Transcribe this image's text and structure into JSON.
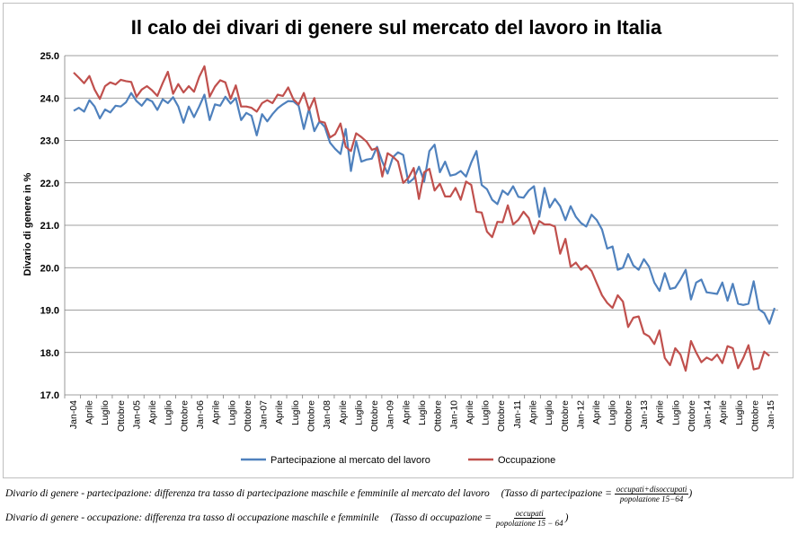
{
  "chart_data": {
    "type": "line",
    "title": "Il calo dei divari di genere sul mercato del lavoro in Italia",
    "ylabel": "Divario di genere in %",
    "xlabel": "",
    "ylim": [
      17.0,
      25.0
    ],
    "yticks": [
      "17.0",
      "18.0",
      "19.0",
      "20.0",
      "21.0",
      "22.0",
      "23.0",
      "24.0",
      "25.0"
    ],
    "xtick_labels": [
      "Jan-04",
      "Aprile",
      "Luglio",
      "Ottobre",
      "Jan-05",
      "Aprile",
      "Luglio",
      "Ottobre",
      "Jan-06",
      "Aprile",
      "Luglio",
      "Ottobre",
      "Jan-07",
      "Aprile",
      "Luglio",
      "Ottobre",
      "Jan-08",
      "Aprile",
      "Luglio",
      "Ottobre",
      "Jan-09",
      "Aprile",
      "Luglio",
      "Ottobre",
      "Jan-10",
      "Aprile",
      "Luglio",
      "Ottobre",
      "Jan-11",
      "Aprile",
      "Luglio",
      "Ottobre",
      "Jan-12",
      "Aprile",
      "Luglio",
      "Ottobre",
      "Jan-13",
      "Aprile",
      "Luglio",
      "Ottobre",
      "Jan-14",
      "Aprile",
      "Luglio",
      "Ottobre",
      "Jan-15"
    ],
    "grid": "horizontal",
    "legend_position": "bottom",
    "series": [
      {
        "name": "Partecipazione al mercato del lavoro",
        "color": "#4F81BD",
        "values": [
          23.7,
          23.77,
          23.68,
          23.95,
          23.8,
          23.52,
          23.73,
          23.66,
          23.82,
          23.8,
          23.9,
          24.12,
          23.93,
          23.82,
          23.98,
          23.92,
          23.72,
          23.97,
          23.88,
          24.02,
          23.8,
          23.42,
          23.8,
          23.55,
          23.8,
          24.08,
          23.48,
          23.85,
          23.82,
          24.03,
          23.87,
          24.0,
          23.48,
          23.65,
          23.58,
          23.12,
          23.62,
          23.45,
          23.62,
          23.76,
          23.85,
          23.93,
          23.92,
          23.82,
          23.27,
          23.75,
          23.22,
          23.45,
          23.32,
          22.95,
          22.8,
          22.68,
          23.27,
          22.28,
          22.98,
          22.5,
          22.55,
          22.57,
          22.85,
          22.5,
          22.22,
          22.6,
          22.72,
          22.66,
          22.0,
          22.1,
          22.38,
          22.03,
          22.75,
          22.9,
          22.25,
          22.5,
          22.17,
          22.2,
          22.28,
          22.15,
          22.48,
          22.75,
          21.95,
          21.85,
          21.6,
          21.5,
          21.82,
          21.72,
          21.92,
          21.67,
          21.65,
          21.82,
          21.92,
          21.2,
          21.88,
          21.42,
          21.62,
          21.45,
          21.12,
          21.45,
          21.2,
          21.05,
          20.97,
          21.25,
          21.12,
          20.9,
          20.45,
          20.5,
          19.95,
          20.0,
          20.32,
          20.05,
          19.95,
          20.2,
          20.02,
          19.65,
          19.45,
          19.87,
          19.5,
          19.53,
          19.72,
          19.95,
          19.25,
          19.65,
          19.72,
          19.42,
          19.4,
          19.38,
          19.65,
          19.22,
          19.62,
          19.15,
          19.12,
          19.15,
          19.68,
          19.02,
          18.93,
          18.68,
          19.05
        ]
      },
      {
        "name": "Occupazione",
        "color": "#C0504D",
        "values": [
          24.6,
          24.48,
          24.35,
          24.52,
          24.2,
          23.98,
          24.28,
          24.37,
          24.32,
          24.43,
          24.4,
          24.38,
          24.03,
          24.2,
          24.28,
          24.18,
          24.05,
          24.35,
          24.62,
          24.1,
          24.33,
          24.13,
          24.28,
          24.15,
          24.5,
          24.75,
          24.03,
          24.27,
          24.42,
          24.37,
          23.98,
          24.3,
          23.8,
          23.8,
          23.77,
          23.68,
          23.88,
          23.95,
          23.88,
          24.08,
          24.05,
          24.25,
          23.97,
          23.85,
          24.12,
          23.72,
          24.0,
          23.45,
          23.42,
          23.07,
          23.15,
          23.4,
          22.85,
          22.75,
          23.17,
          23.08,
          22.97,
          22.78,
          22.82,
          22.15,
          22.7,
          22.62,
          22.5,
          22.0,
          22.12,
          22.35,
          21.62,
          22.25,
          22.33,
          21.82,
          21.98,
          21.68,
          21.68,
          21.88,
          21.6,
          22.03,
          21.95,
          21.32,
          21.3,
          20.85,
          20.72,
          21.08,
          21.07,
          21.47,
          21.02,
          21.13,
          21.32,
          21.17,
          20.8,
          21.1,
          21.02,
          21.02,
          20.97,
          20.33,
          20.68,
          20.02,
          20.12,
          19.95,
          20.05,
          19.92,
          19.63,
          19.35,
          19.17,
          19.05,
          19.35,
          19.2,
          18.6,
          18.82,
          18.85,
          18.45,
          18.38,
          18.2,
          18.52,
          17.87,
          17.7,
          18.1,
          17.95,
          17.57,
          18.27,
          18.0,
          17.77,
          17.88,
          17.82,
          17.95,
          17.75,
          18.15,
          18.1,
          17.63,
          17.87,
          18.17,
          17.6,
          17.63,
          18.02,
          17.92
        ]
      }
    ]
  },
  "notes": {
    "note1": "Divario di genere - partecipazione: differenza tra tasso di partecipazione maschile e femminile al mercato del lavoro",
    "formula1_lhs": "(Tasso di partecipazione =",
    "formula1_num": "occupati+disoccupati",
    "formula1_den": "popolazione 15−64",
    "note2": "Divario di genere - occupazione: differenza tra tasso di occupazione maschile e femminile",
    "formula2_lhs": "(Tasso di occupazione =",
    "formula2_num": "occupati",
    "formula2_den": "popolazione 15 − 64"
  }
}
